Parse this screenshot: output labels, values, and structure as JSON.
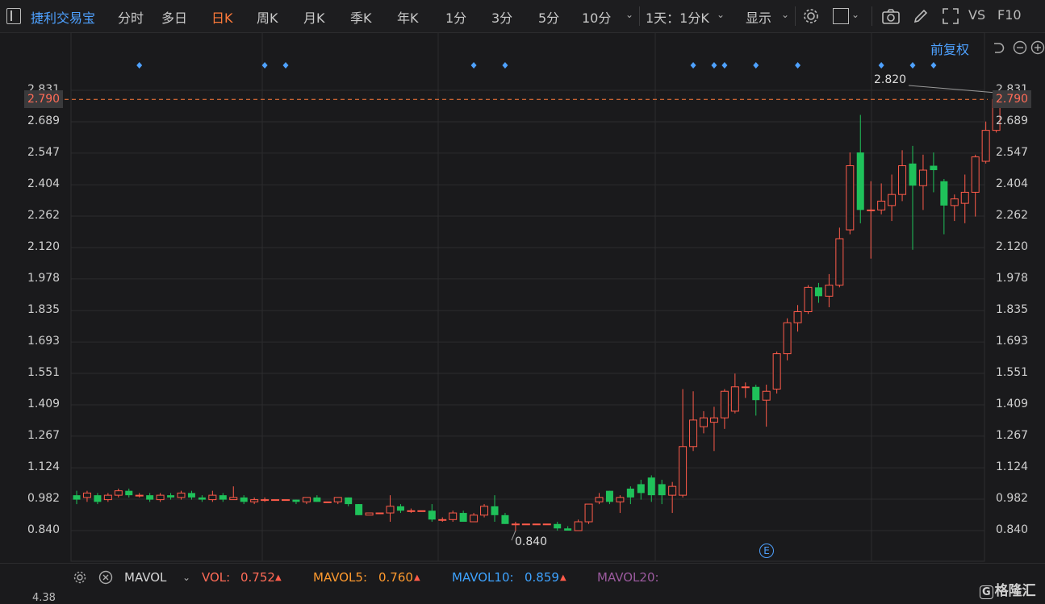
{
  "toolbar": {
    "stock_name": "捷利交易宝",
    "tabs": [
      "分时",
      "多日",
      "日K",
      "周K",
      "月K",
      "季K",
      "年K",
      "1分",
      "3分",
      "5分",
      "10分"
    ],
    "active_tab": "日K",
    "period_selector": "1天：1分K",
    "display_label": "显示",
    "vs_label": "VS",
    "f10_label": "F10"
  },
  "chart": {
    "adjust_label": "前复权",
    "y_ticks": [
      "2.831",
      "2.689",
      "2.547",
      "2.404",
      "2.262",
      "2.120",
      "1.978",
      "1.835",
      "1.693",
      "1.551",
      "1.409",
      "1.267",
      "1.124",
      "0.982",
      "0.840"
    ],
    "current_price": "2.790",
    "high_label": "2.820",
    "low_label": "0.840",
    "event_marker": "E",
    "candles": [
      [
        1.0,
        0.98,
        1.02,
        0.96
      ],
      [
        0.99,
        1.01,
        1.02,
        0.97
      ],
      [
        1.0,
        0.97,
        1.01,
        0.96
      ],
      [
        0.98,
        1.0,
        1.01,
        0.97
      ],
      [
        1.0,
        1.02,
        1.03,
        0.99
      ],
      [
        1.02,
        1.0,
        1.03,
        0.99
      ],
      [
        1.0,
        1.0,
        1.01,
        0.99
      ],
      [
        1.0,
        0.98,
        1.01,
        0.97
      ],
      [
        0.98,
        1.0,
        1.01,
        0.97
      ],
      [
        1.0,
        0.99,
        1.01,
        0.98
      ],
      [
        0.99,
        1.01,
        1.02,
        0.98
      ],
      [
        1.01,
        0.99,
        1.02,
        0.98
      ],
      [
        0.99,
        0.98,
        1.0,
        0.97
      ],
      [
        0.98,
        1.0,
        1.02,
        0.97
      ],
      [
        1.0,
        0.98,
        1.01,
        0.97
      ],
      [
        0.98,
        0.99,
        1.04,
        0.98
      ],
      [
        0.99,
        0.97,
        1.0,
        0.96
      ],
      [
        0.97,
        0.98,
        0.99,
        0.96
      ],
      [
        0.98,
        0.98,
        0.99,
        0.97
      ],
      [
        0.98,
        0.98,
        0.98,
        0.98
      ],
      [
        0.98,
        0.98,
        0.98,
        0.98
      ],
      [
        0.98,
        0.97,
        0.98,
        0.96
      ],
      [
        0.97,
        0.99,
        0.99,
        0.96
      ],
      [
        0.99,
        0.97,
        1.0,
        0.97
      ],
      [
        0.97,
        0.97,
        0.97,
        0.97
      ],
      [
        0.97,
        0.99,
        0.99,
        0.96
      ],
      [
        0.99,
        0.96,
        0.99,
        0.95
      ],
      [
        0.96,
        0.91,
        0.96,
        0.91
      ],
      [
        0.91,
        0.92,
        0.92,
        0.91
      ],
      [
        0.92,
        0.92,
        0.92,
        0.92
      ],
      [
        0.92,
        0.95,
        1.0,
        0.88
      ],
      [
        0.95,
        0.93,
        0.96,
        0.92
      ],
      [
        0.93,
        0.93,
        0.94,
        0.92
      ],
      [
        0.93,
        0.93,
        0.93,
        0.93
      ],
      [
        0.93,
        0.89,
        0.96,
        0.88
      ],
      [
        0.89,
        0.89,
        0.9,
        0.88
      ],
      [
        0.89,
        0.92,
        0.93,
        0.88
      ],
      [
        0.92,
        0.88,
        0.93,
        0.88
      ],
      [
        0.88,
        0.91,
        0.92,
        0.89
      ],
      [
        0.91,
        0.95,
        0.96,
        0.9
      ],
      [
        0.95,
        0.91,
        1.0,
        0.88
      ],
      [
        0.91,
        0.87,
        0.92,
        0.87
      ],
      [
        0.87,
        0.87,
        0.88,
        0.84
      ],
      [
        0.87,
        0.87,
        0.87,
        0.87
      ],
      [
        0.87,
        0.87,
        0.87,
        0.87
      ],
      [
        0.87,
        0.87,
        0.87,
        0.87
      ],
      [
        0.87,
        0.85,
        0.88,
        0.84
      ],
      [
        0.85,
        0.84,
        0.86,
        0.84
      ],
      [
        0.84,
        0.88,
        0.89,
        0.84
      ],
      [
        0.88,
        0.96,
        0.96,
        0.87
      ],
      [
        0.97,
        0.99,
        1.01,
        0.96
      ],
      [
        1.02,
        0.97,
        1.02,
        0.96
      ],
      [
        0.97,
        0.99,
        1.0,
        0.92
      ],
      [
        1.03,
        0.99,
        1.04,
        0.96
      ],
      [
        1.05,
        1.01,
        1.07,
        0.98
      ],
      [
        1.08,
        1.0,
        1.09,
        0.97
      ],
      [
        1.05,
        1.0,
        1.07,
        0.96
      ],
      [
        1.0,
        1.04,
        1.06,
        0.92
      ],
      [
        1.0,
        1.22,
        1.48,
        0.99
      ],
      [
        1.22,
        1.34,
        1.47,
        1.2
      ],
      [
        1.31,
        1.35,
        1.38,
        1.28
      ],
      [
        1.33,
        1.35,
        1.4,
        1.2
      ],
      [
        1.35,
        1.47,
        1.48,
        1.3
      ],
      [
        1.38,
        1.49,
        1.55,
        1.37
      ],
      [
        1.49,
        1.49,
        1.51,
        1.44
      ],
      [
        1.49,
        1.43,
        1.5,
        1.36
      ],
      [
        1.43,
        1.47,
        1.5,
        1.31
      ],
      [
        1.48,
        1.64,
        1.65,
        1.46
      ],
      [
        1.64,
        1.78,
        1.8,
        1.61
      ],
      [
        1.78,
        1.83,
        1.86,
        1.74
      ],
      [
        1.83,
        1.94,
        1.95,
        1.82
      ],
      [
        1.94,
        1.9,
        1.96,
        1.87
      ],
      [
        1.9,
        1.95,
        2.0,
        1.85
      ],
      [
        1.95,
        2.16,
        2.21,
        1.94
      ],
      [
        2.2,
        2.49,
        2.55,
        2.18
      ],
      [
        2.55,
        2.29,
        2.72,
        2.23
      ],
      [
        2.29,
        2.29,
        2.42,
        2.07
      ],
      [
        2.29,
        2.33,
        2.41,
        2.27
      ],
      [
        2.31,
        2.36,
        2.45,
        2.24
      ],
      [
        2.36,
        2.49,
        2.56,
        2.33
      ],
      [
        2.5,
        2.4,
        2.58,
        2.11
      ],
      [
        2.4,
        2.47,
        2.54,
        2.29
      ],
      [
        2.49,
        2.47,
        2.55,
        2.37
      ],
      [
        2.42,
        2.31,
        2.43,
        2.18
      ],
      [
        2.31,
        2.34,
        2.36,
        2.24
      ],
      [
        2.32,
        2.37,
        2.45,
        2.23
      ],
      [
        2.37,
        2.53,
        2.54,
        2.26
      ],
      [
        2.51,
        2.65,
        2.69,
        2.5
      ],
      [
        2.65,
        2.79,
        2.82,
        2.64
      ]
    ],
    "event_dots": [
      6,
      18,
      20,
      38,
      41,
      59,
      61,
      62,
      65,
      69,
      77,
      80,
      82
    ]
  },
  "volume": {
    "indicator": "MAVOL",
    "vol_label": "VOL:",
    "vol_value": "0.752",
    "mavol5_label": "MAVOL5:",
    "mavol5_value": "0.760",
    "mavol10_label": "MAVOL10:",
    "mavol10_value": "0.859",
    "mavol20_label": "MAVOL20:",
    "axis_value": "4.38"
  },
  "brand": "格隆汇",
  "colors": {
    "up": "#ff5b4a",
    "down": "#1fc15a",
    "accent": "#ff7a3a",
    "link": "#4ea1ff"
  }
}
